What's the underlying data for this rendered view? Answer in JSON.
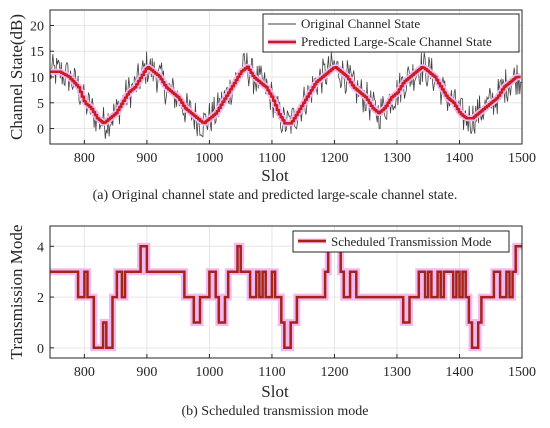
{
  "colors": {
    "original": "#404040",
    "predicted": "#c81e1e",
    "predicted_glow": "#f2b8f2",
    "scheduled": "#a52317",
    "grid": "#e6e6e6",
    "axis": "#262626"
  },
  "chart_data": [
    {
      "type": "line",
      "xlabel": "Slot",
      "ylabel": "Channel State(dB)",
      "caption": "(a) Original channel state and predicted large-scale channel state.",
      "xlim": [
        745,
        1500
      ],
      "ylim": [
        -3,
        23
      ],
      "xticks": [
        800,
        900,
        1000,
        1100,
        1200,
        1300,
        1400,
        1500
      ],
      "yticks": [
        0,
        5,
        10,
        15,
        20
      ],
      "grid": true,
      "legend_position": "top-right",
      "series": [
        {
          "name": "Original Channel State",
          "style": "thin-noisy",
          "x": [
            745,
            760,
            775,
            790,
            800,
            810,
            820,
            830,
            840,
            850,
            860,
            870,
            880,
            890,
            900,
            910,
            920,
            930,
            940,
            950,
            960,
            970,
            980,
            990,
            1000,
            1010,
            1020,
            1030,
            1040,
            1050,
            1060,
            1070,
            1080,
            1090,
            1100,
            1110,
            1120,
            1130,
            1140,
            1150,
            1160,
            1170,
            1180,
            1190,
            1200,
            1210,
            1220,
            1230,
            1240,
            1250,
            1260,
            1270,
            1280,
            1290,
            1300,
            1310,
            1320,
            1330,
            1340,
            1350,
            1360,
            1370,
            1380,
            1390,
            1400,
            1410,
            1420,
            1430,
            1440,
            1450,
            1460,
            1470,
            1480,
            1490,
            1500
          ],
          "y": [
            11,
            11,
            10,
            8,
            5,
            4,
            2,
            1,
            2,
            3,
            5,
            7,
            8,
            10,
            12,
            11,
            10,
            8,
            7,
            6,
            4,
            3,
            2,
            1,
            2,
            3,
            5,
            7,
            9,
            11,
            12,
            10,
            9,
            8,
            6,
            3,
            1,
            1,
            3,
            5,
            7,
            9,
            10,
            11,
            12,
            11,
            10,
            8,
            7,
            6,
            4,
            3,
            4,
            6,
            7,
            9,
            10,
            11,
            12,
            11,
            10,
            8,
            6,
            5,
            3,
            2,
            2,
            3,
            4,
            5,
            6,
            8,
            9,
            10,
            10
          ],
          "noise_amplitude": 3.5
        },
        {
          "name": "Predicted Large-Scale Channel State",
          "style": "stepped-thick",
          "x": [
            745,
            760,
            775,
            790,
            800,
            810,
            820,
            830,
            840,
            850,
            860,
            870,
            880,
            890,
            900,
            910,
            920,
            930,
            940,
            950,
            960,
            970,
            980,
            990,
            1000,
            1010,
            1020,
            1030,
            1040,
            1050,
            1060,
            1070,
            1080,
            1090,
            1100,
            1110,
            1120,
            1130,
            1140,
            1150,
            1160,
            1170,
            1180,
            1190,
            1200,
            1210,
            1220,
            1230,
            1240,
            1250,
            1260,
            1270,
            1280,
            1290,
            1300,
            1310,
            1320,
            1330,
            1340,
            1350,
            1360,
            1370,
            1380,
            1390,
            1400,
            1410,
            1420,
            1430,
            1440,
            1450,
            1460,
            1470,
            1480,
            1490,
            1500
          ],
          "y": [
            11,
            11,
            10,
            8,
            5,
            4,
            2,
            1,
            2,
            3,
            5,
            7,
            8,
            10,
            12,
            11,
            10,
            8,
            7,
            6,
            4,
            3,
            2,
            1,
            2,
            3,
            5,
            7,
            9,
            11,
            12,
            10,
            9,
            8,
            6,
            3,
            1,
            1,
            3,
            5,
            7,
            9,
            10,
            11,
            12,
            11,
            10,
            8,
            7,
            6,
            4,
            3,
            4,
            6,
            7,
            9,
            10,
            11,
            12,
            11,
            10,
            8,
            6,
            5,
            3,
            2,
            2,
            3,
            4,
            5,
            6,
            8,
            9,
            10,
            10
          ]
        }
      ]
    },
    {
      "type": "line",
      "xlabel": "Slot",
      "ylabel": "Transmission Mode",
      "caption": "(b) Scheduled transmission mode",
      "xlim": [
        745,
        1500
      ],
      "ylim": [
        -0.4,
        4.8
      ],
      "xticks": [
        800,
        900,
        1000,
        1100,
        1200,
        1300,
        1400,
        1500
      ],
      "yticks": [
        0,
        2,
        4
      ],
      "grid": true,
      "legend_position": "top-right",
      "series": [
        {
          "name": "Scheduled Transmission Mode",
          "style": "step",
          "x": [
            745,
            790,
            800,
            805,
            815,
            825,
            830,
            835,
            845,
            852,
            860,
            865,
            885,
            890,
            900,
            960,
            970,
            975,
            985,
            995,
            1000,
            1010,
            1015,
            1025,
            1030,
            1040,
            1045,
            1050,
            1055,
            1065,
            1075,
            1080,
            1085,
            1090,
            1100,
            1105,
            1115,
            1120,
            1130,
            1140,
            1145,
            1185,
            1190,
            1200,
            1210,
            1215,
            1225,
            1235,
            1240,
            1245,
            1310,
            1320,
            1325,
            1335,
            1345,
            1350,
            1355,
            1365,
            1370,
            1375,
            1390,
            1395,
            1400,
            1405,
            1410,
            1415,
            1420,
            1430,
            1435,
            1445,
            1455,
            1465,
            1475,
            1480,
            1485,
            1490,
            1500
          ],
          "y": [
            3,
            2,
            3,
            2,
            0,
            0,
            1,
            0,
            2,
            3,
            2,
            3,
            3,
            4,
            3,
            2,
            2,
            1,
            2,
            2,
            3,
            2,
            1,
            2,
            3,
            3,
            4,
            3,
            3,
            2,
            3,
            2,
            3,
            2,
            3,
            2,
            1,
            0,
            1,
            2,
            2,
            3,
            4,
            4,
            3,
            2,
            3,
            2,
            2,
            2,
            1,
            2,
            2,
            3,
            2,
            3,
            2,
            3,
            2,
            3,
            2,
            3,
            2,
            3,
            2,
            1,
            0,
            1,
            2,
            2,
            3,
            2,
            3,
            2,
            3,
            4,
            4
          ]
        }
      ]
    }
  ]
}
